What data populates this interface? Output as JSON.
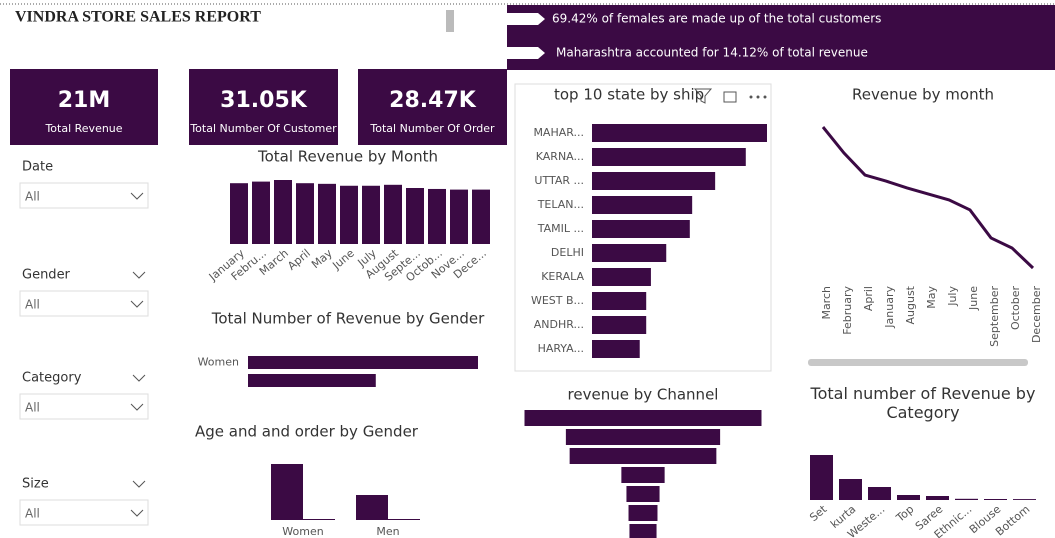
{
  "header": {
    "title": "VINDRA STORE SALES REPORT"
  },
  "banners": [
    "69.42% of females are made up of the  total customers",
    "Maharashtra accounted for 14.12% of total revenue"
  ],
  "kpis": [
    {
      "value": "21M",
      "label": "Total Revenue"
    },
    {
      "value": "31.05K",
      "label": "Total Number Of Customer"
    },
    {
      "value": "28.47K",
      "label": "Total Number Of Order"
    }
  ],
  "filters": [
    {
      "label": "Date",
      "value": "All"
    },
    {
      "label": "Gender",
      "value": "All"
    },
    {
      "label": "Category",
      "value": "All"
    },
    {
      "label": "Size",
      "value": "All"
    }
  ],
  "chart_data": [
    {
      "type": "bar",
      "title": "Total Revenue by Month",
      "color": "#3b0a44",
      "categories": [
        "January",
        "Febru...",
        "March",
        "April",
        "May",
        "June",
        "July",
        "August",
        "Septe...",
        "Octob...",
        "Nove...",
        "Dece..."
      ],
      "values": [
        1.9,
        1.95,
        2.0,
        1.9,
        1.88,
        1.82,
        1.82,
        1.85,
        1.75,
        1.72,
        1.7,
        1.7
      ]
    },
    {
      "type": "hbar",
      "title": "Total Number of Revenue by Gender",
      "color": "#3b0a44",
      "categories": [
        "Women",
        null
      ],
      "values": [
        13.5,
        7.5
      ]
    },
    {
      "type": "grouped",
      "title": "Age and and order by Gender",
      "categories": [
        "Women",
        "Men"
      ],
      "series": [
        {
          "color": "#3b0a44",
          "values": [
            56,
            25
          ]
        },
        {
          "color": "#3b0a44",
          "values": [
            1,
            1
          ]
        }
      ]
    },
    {
      "type": "hbar",
      "title": "top 10 state by ship",
      "color": "#3b0a44",
      "categories": [
        "MAHAR...",
        "KARNA...",
        "UTTAR ...",
        "TELAN...",
        "TAMIL ...",
        "DELHI",
        "KERALA",
        "WEST B...",
        "ANDHR...",
        "HARYA..."
      ],
      "values": [
        2.97,
        2.61,
        2.09,
        1.7,
        1.66,
        1.26,
        1.0,
        0.92,
        0.92,
        0.81
      ]
    },
    {
      "type": "line",
      "title": "Revenue by month",
      "color": "#3b0a44",
      "categories": [
        "March",
        "February",
        "April",
        "January",
        "August",
        "May",
        "July",
        "June",
        "September",
        "October",
        "December"
      ],
      "values": [
        2.0,
        1.935,
        1.88,
        1.865,
        1.848,
        1.833,
        1.818,
        1.793,
        1.723,
        1.698,
        1.648
      ]
    },
    {
      "type": "funnel",
      "title": "revenue by Channel",
      "color": "#3b0a44",
      "values": [
        6.3,
        4.1,
        3.9,
        1.15,
        0.88,
        0.77,
        0.72
      ]
    },
    {
      "type": "bar",
      "title": "Total number of Revenue by Category",
      "color": "#3b0a44",
      "categories": [
        "Set",
        "kurta",
        "Weste...",
        "Top",
        "Saree",
        "Ethnic...",
        "Blouse",
        "Bottom"
      ],
      "values": [
        4500,
        2100,
        1300,
        500,
        400,
        120,
        100,
        90
      ]
    }
  ]
}
